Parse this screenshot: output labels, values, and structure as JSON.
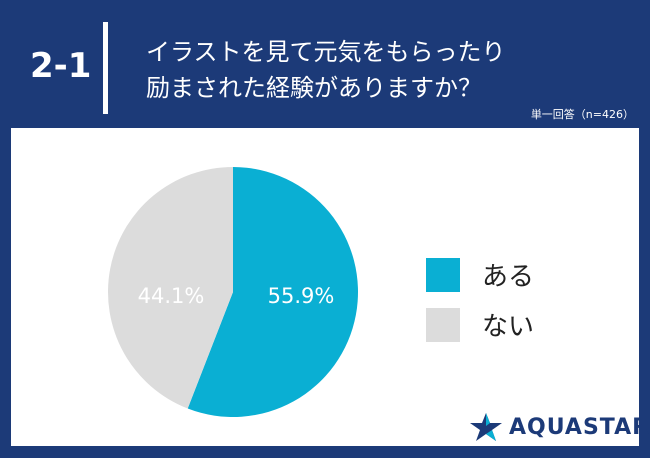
{
  "header": {
    "question_number": "2-1",
    "title_line1": "イラストを見て元気をもらったり",
    "title_line2": "励まされた経験がありますか？",
    "note": "単一回答（n=426）"
  },
  "logo": {
    "text": "AQUASTAR",
    "icon": "star-logo-icon"
  },
  "colors": {
    "background": "#1c3a78",
    "aru": "#0aafd3",
    "nai": "#dcdcdc"
  },
  "chart_data": {
    "type": "pie",
    "title": "",
    "slices": [
      {
        "label": "ある",
        "value": 55.9,
        "display": "55.9%",
        "color": "#0aafd3"
      },
      {
        "label": "ない",
        "value": 44.1,
        "display": "44.1%",
        "color": "#dcdcdc"
      }
    ],
    "legend": "right"
  }
}
